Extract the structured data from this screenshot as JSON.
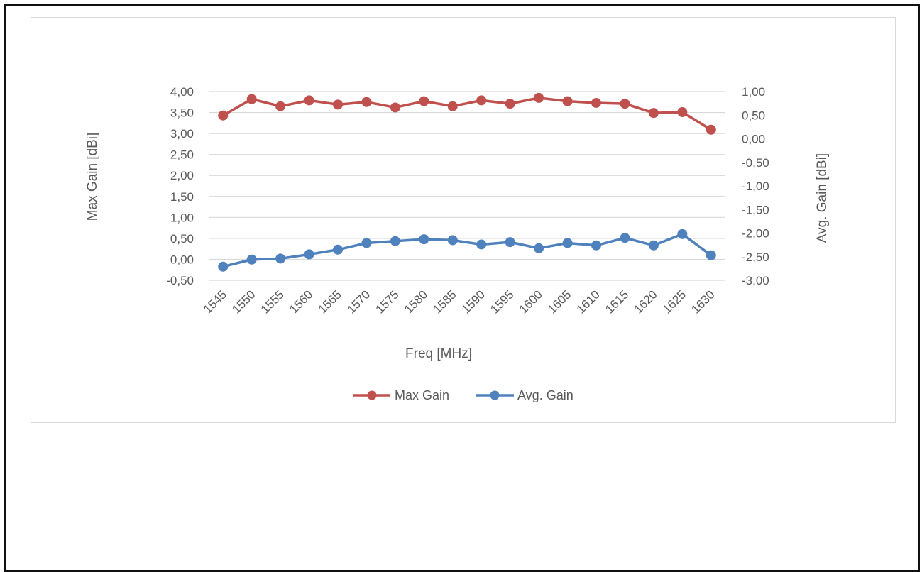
{
  "chart_data": {
    "type": "line",
    "xlabel": "Freq [MHz]",
    "ylabel_left": "Max Gain [dBi]",
    "ylabel_right": "Avg. Gain [dBi]",
    "x": [
      "1545",
      "1550",
      "1555",
      "1560",
      "1565",
      "1570",
      "1575",
      "1580",
      "1585",
      "1590",
      "1595",
      "1600",
      "1605",
      "1610",
      "1615",
      "1620",
      "1625",
      "1630"
    ],
    "ylim_left": [
      -0.5,
      4.0
    ],
    "ylim_right": [
      -3.0,
      1.0
    ],
    "yticks_left": [
      "4,00",
      "3,50",
      "3,00",
      "2,50",
      "2,00",
      "1,50",
      "1,00",
      "0,50",
      "0,00",
      "-0,50"
    ],
    "yticks_right": [
      "1,00",
      "0,50",
      "0,00",
      "-0,50",
      "-1,00",
      "-1,50",
      "-2,00",
      "-2,50",
      "-3,00"
    ],
    "grid": true,
    "legend_position": "bottom",
    "series": [
      {
        "name": "Max Gain",
        "axis": "left",
        "color": "#c0504d",
        "values": [
          3.43,
          3.82,
          3.65,
          3.79,
          3.69,
          3.75,
          3.62,
          3.77,
          3.65,
          3.79,
          3.71,
          3.85,
          3.77,
          3.73,
          3.71,
          3.49,
          3.51,
          3.09
        ]
      },
      {
        "name": "Avg. Gain",
        "axis": "right",
        "color": "#4f81bd",
        "values": [
          -2.71,
          -2.56,
          -2.54,
          -2.45,
          -2.35,
          -2.21,
          -2.17,
          -2.13,
          -2.15,
          -2.24,
          -2.19,
          -2.32,
          -2.21,
          -2.26,
          -2.1,
          -2.26,
          -2.02,
          -2.47
        ]
      }
    ]
  }
}
